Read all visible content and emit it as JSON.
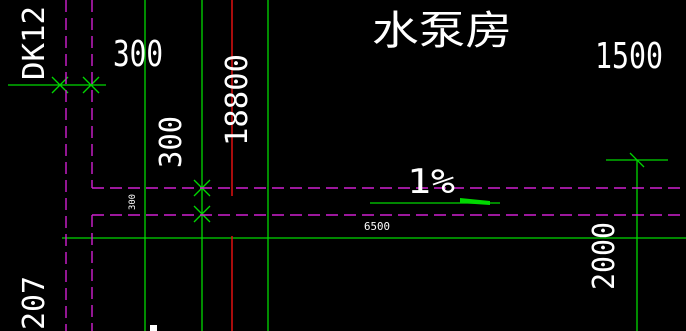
{
  "drawing": {
    "background_color": "#000000",
    "colors": {
      "axis_line": "#00d800",
      "dashed_wall": "#d020d0",
      "red_line": "#e01010",
      "text": "#ffffff"
    },
    "texts": {
      "dk_label": "DK12",
      "dim_300_top": "300",
      "room_name": "水泵房",
      "dim_1500": "1500",
      "dim_18800": "18800",
      "dim_300_vertical": "300",
      "slope": "1%",
      "dim_300_small": "300",
      "dim_6500": "6500",
      "dim_2000": "2000",
      "dim_207": "207"
    }
  }
}
